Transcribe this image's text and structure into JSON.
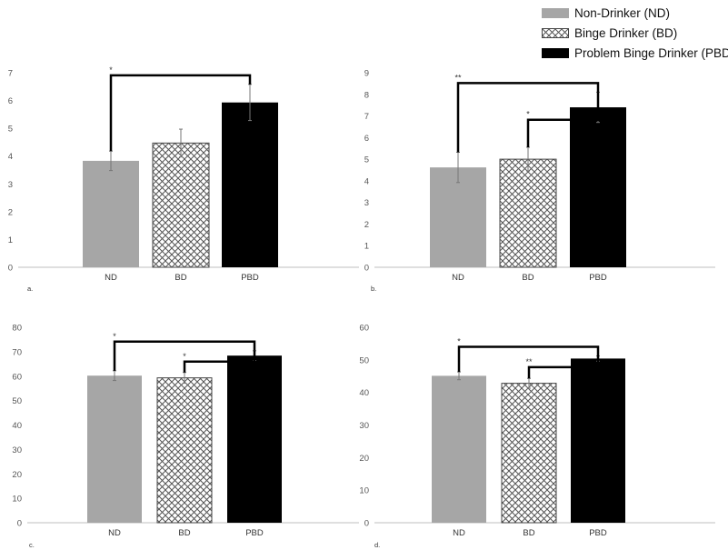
{
  "legend": [
    {
      "label": "Non-Drinker (ND)",
      "pattern": "solid-gray"
    },
    {
      "label": "Binge Drinker (BD)",
      "pattern": "crosshatch"
    },
    {
      "label": "Problem Binge Drinker (PBD)",
      "pattern": "solid-black"
    }
  ],
  "colors": {
    "ND": "#a6a6a6",
    "BD_line": "#444444",
    "PBD": "#000000",
    "axis": "#bfbfbf",
    "bracket": "#000000"
  },
  "chart_data": [
    {
      "type": "bar",
      "panel": "a.",
      "categories": [
        "ND",
        "BD",
        "PBD"
      ],
      "values": [
        3.83,
        4.47,
        5.93
      ],
      "errors": [
        0.35,
        0.5,
        0.65
      ],
      "ylim": [
        0,
        7
      ],
      "yticks": [
        0,
        1,
        2,
        3,
        4,
        5,
        6,
        7
      ],
      "significance": [
        {
          "from": 0,
          "to": 2,
          "label": "*"
        }
      ]
    },
    {
      "type": "bar",
      "panel": "b.",
      "categories": [
        "ND",
        "BD",
        "PBD"
      ],
      "values": [
        4.62,
        5.0,
        7.4
      ],
      "errors": [
        0.7,
        0.55,
        0.7
      ],
      "ylim": [
        0,
        9
      ],
      "yticks": [
        0,
        1,
        2,
        3,
        4,
        5,
        6,
        7,
        8,
        9
      ],
      "significance": [
        {
          "from": 0,
          "to": 2,
          "label": "**"
        },
        {
          "from": 1,
          "to": 2,
          "label": "*"
        }
      ]
    },
    {
      "type": "bar",
      "panel": "c.",
      "categories": [
        "ND",
        "BD",
        "PBD"
      ],
      "values": [
        60.2,
        59.3,
        68.4
      ],
      "errors": [
        2.0,
        2.2,
        2.0
      ],
      "ylim": [
        0,
        80
      ],
      "yticks": [
        0,
        10,
        20,
        30,
        40,
        50,
        60,
        70,
        80
      ],
      "significance": [
        {
          "from": 0,
          "to": 2,
          "label": "*"
        },
        {
          "from": 1,
          "to": 2,
          "label": "*"
        }
      ]
    },
    {
      "type": "bar",
      "panel": "d.",
      "categories": [
        "ND",
        "BD",
        "PBD"
      ],
      "values": [
        45.1,
        42.8,
        50.4
      ],
      "errors": [
        1.2,
        1.5,
        0.8
      ],
      "ylim": [
        0,
        60
      ],
      "yticks": [
        0,
        10,
        20,
        30,
        40,
        50,
        60
      ],
      "significance": [
        {
          "from": 0,
          "to": 2,
          "label": "*"
        },
        {
          "from": 1,
          "to": 2,
          "label": "**"
        }
      ]
    }
  ]
}
